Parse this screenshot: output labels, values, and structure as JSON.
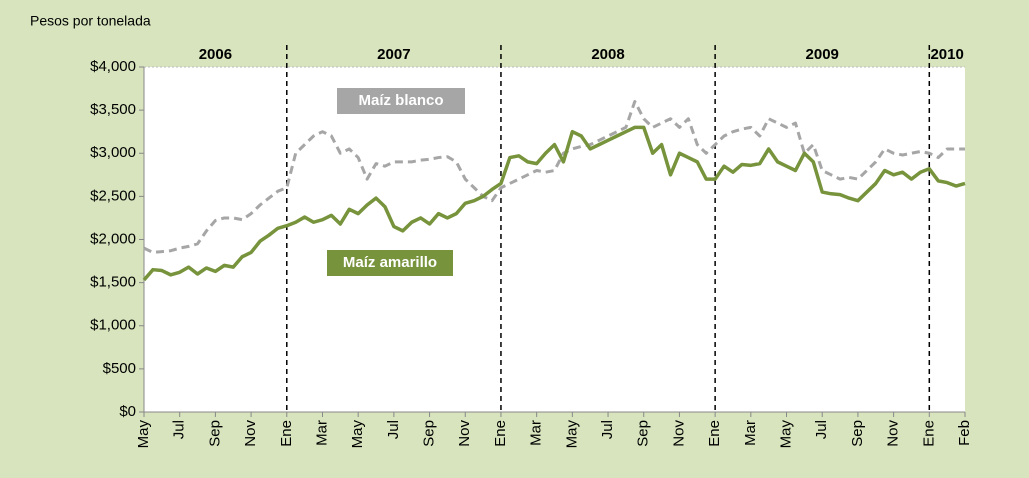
{
  "chart_data": {
    "type": "line",
    "y_label": "Pesos por tonelada",
    "annotations": [
      "2006",
      "2007",
      "2008",
      "2009",
      "2010"
    ],
    "year_dividers": [
      8,
      20,
      32,
      44
    ],
    "x": [
      0,
      0.5,
      1,
      1.5,
      2,
      2.5,
      3,
      3.5,
      4,
      4.5,
      5,
      5.5,
      6,
      6.5,
      7,
      7.5,
      8,
      8.5,
      9,
      9.5,
      10,
      10.5,
      11,
      11.5,
      12,
      12.5,
      13,
      13.5,
      14,
      14.5,
      15,
      15.5,
      16,
      16.5,
      17,
      17.5,
      18,
      18.5,
      19,
      19.5,
      20,
      20.5,
      21,
      21.5,
      22,
      22.5,
      23,
      23.5,
      24,
      24.5,
      25,
      25.5,
      26,
      26.5,
      27,
      27.5,
      28,
      28.5,
      29,
      29.5,
      30,
      30.5,
      31,
      31.5,
      32,
      32.5,
      33,
      33.5,
      34,
      34.5,
      35,
      35.5,
      36,
      36.5,
      37,
      37.5,
      38,
      38.5,
      39,
      39.5,
      40,
      40.5,
      41,
      41.5,
      42,
      42.5,
      43,
      43.5,
      44,
      44.5,
      45,
      45.5,
      46
    ],
    "series": [
      {
        "name": "Maíz blanco",
        "color": "#a6a6a6",
        "dashed": true,
        "values": [
          1900,
          1850,
          1860,
          1870,
          1900,
          1920,
          1950,
          2100,
          2220,
          2250,
          2250,
          2230,
          2300,
          2400,
          2480,
          2560,
          2600,
          3000,
          3100,
          3200,
          3250,
          3200,
          3000,
          3050,
          2950,
          2700,
          2880,
          2850,
          2900,
          2900,
          2900,
          2920,
          2930,
          2950,
          2960,
          2900,
          2700,
          2600,
          2500,
          2450,
          2600,
          2650,
          2700,
          2750,
          2800,
          2780,
          2800,
          3000,
          3050,
          3080,
          3100,
          3150,
          3200,
          3250,
          3300,
          3600,
          3400,
          3300,
          3350,
          3400,
          3300,
          3400,
          3100,
          3000,
          3100,
          3200,
          3250,
          3280,
          3300,
          3200,
          3400,
          3350,
          3300,
          3350,
          3000,
          3100,
          2800,
          2750,
          2700,
          2720,
          2700,
          2800,
          2900,
          3050,
          3000,
          2980,
          3000,
          3020,
          3000,
          2950,
          3050,
          3050,
          3050
        ]
      },
      {
        "name": "Maíz amarillo",
        "color": "#77933c",
        "dashed": false,
        "values": [
          1530,
          1650,
          1640,
          1590,
          1620,
          1680,
          1600,
          1670,
          1630,
          1700,
          1680,
          1800,
          1850,
          1980,
          2050,
          2130,
          2160,
          2200,
          2260,
          2200,
          2230,
          2280,
          2180,
          2350,
          2300,
          2400,
          2480,
          2380,
          2150,
          2100,
          2200,
          2250,
          2180,
          2300,
          2250,
          2300,
          2420,
          2450,
          2500,
          2580,
          2650,
          2950,
          2970,
          2900,
          2880,
          3000,
          3100,
          2900,
          3250,
          3200,
          3050,
          3100,
          3150,
          3200,
          3250,
          3300,
          3300,
          3000,
          3100,
          2750,
          3000,
          2950,
          2900,
          2700,
          2700,
          2850,
          2780,
          2870,
          2860,
          2880,
          3050,
          2900,
          2850,
          2800,
          3000,
          2900,
          2550,
          2530,
          2520,
          2480,
          2450,
          2550,
          2650,
          2800,
          2750,
          2780,
          2700,
          2780,
          2820,
          2680,
          2660,
          2620,
          2650
        ]
      }
    ],
    "xlim": [
      0,
      46
    ],
    "xticks": [
      {
        "value": 0,
        "label": "May"
      },
      {
        "value": 2,
        "label": "Jul"
      },
      {
        "value": 4,
        "label": "Sep"
      },
      {
        "value": 6,
        "label": "Nov"
      },
      {
        "value": 8,
        "label": "Ene"
      },
      {
        "value": 10,
        "label": "Mar"
      },
      {
        "value": 12,
        "label": "May"
      },
      {
        "value": 14,
        "label": "Jul"
      },
      {
        "value": 16,
        "label": "Sep"
      },
      {
        "value": 18,
        "label": "Nov"
      },
      {
        "value": 20,
        "label": "Ene"
      },
      {
        "value": 22,
        "label": "Mar"
      },
      {
        "value": 24,
        "label": "May"
      },
      {
        "value": 26,
        "label": "Jul"
      },
      {
        "value": 28,
        "label": "Sep"
      },
      {
        "value": 30,
        "label": "Nov"
      },
      {
        "value": 32,
        "label": "Ene"
      },
      {
        "value": 34,
        "label": "Mar"
      },
      {
        "value": 36,
        "label": "May"
      },
      {
        "value": 38,
        "label": "Jul"
      },
      {
        "value": 40,
        "label": "Sep"
      },
      {
        "value": 42,
        "label": "Nov"
      },
      {
        "value": 44,
        "label": "Ene"
      },
      {
        "value": 46,
        "label": "Feb"
      }
    ],
    "ylim": [
      0,
      4000
    ],
    "yticks": [
      {
        "value": 0,
        "label": "$0"
      },
      {
        "value": 500,
        "label": "$500"
      },
      {
        "value": 1000,
        "label": "$1,000"
      },
      {
        "value": 1500,
        "label": "$1,500"
      },
      {
        "value": 2000,
        "label": "$2,000"
      },
      {
        "value": 2500,
        "label": "$2,500"
      },
      {
        "value": 3000,
        "label": "$3,000"
      },
      {
        "value": 3500,
        "label": "$3,500"
      },
      {
        "value": 4000,
        "label": "$4,000"
      }
    ],
    "grid": false
  }
}
